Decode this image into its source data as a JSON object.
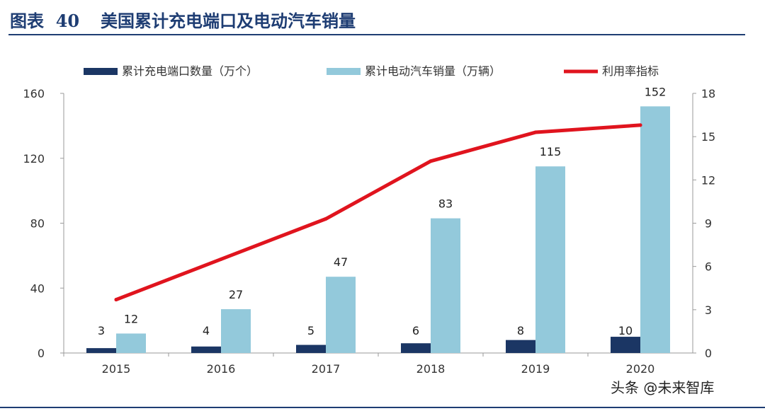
{
  "header": {
    "figure_number": "图表  40",
    "title": "美国累计充电端口及电动汽车销量"
  },
  "watermark": "头条 @未来智库",
  "colors": {
    "ports_bar": "#1b3664",
    "sales_bar": "#93c9db",
    "utilization_line": "#e0141e",
    "title": "#1e3d73"
  },
  "chart_data": {
    "type": "bar",
    "categories": [
      "2015",
      "2016",
      "2017",
      "2018",
      "2019",
      "2020"
    ],
    "series": [
      {
        "name": "累计充电端口数量（万个）",
        "type": "bar",
        "axis": "left",
        "values": [
          3,
          4,
          5,
          6,
          8,
          10
        ]
      },
      {
        "name": "累计电动汽车销量（万辆）",
        "type": "bar",
        "axis": "left",
        "values": [
          12,
          27,
          47,
          83,
          115,
          152
        ]
      },
      {
        "name": "利用率指标",
        "type": "line",
        "axis": "right",
        "values": [
          3.7,
          6.5,
          9.3,
          13.3,
          15.3,
          15.8
        ]
      }
    ],
    "y_left": {
      "min": 0,
      "max": 160,
      "ticks": [
        0,
        40,
        80,
        120,
        160
      ]
    },
    "y_right": {
      "min": 0,
      "max": 18,
      "ticks": [
        0,
        3,
        6,
        9,
        12,
        15,
        18
      ]
    },
    "legend_position": "top",
    "grid": false
  }
}
